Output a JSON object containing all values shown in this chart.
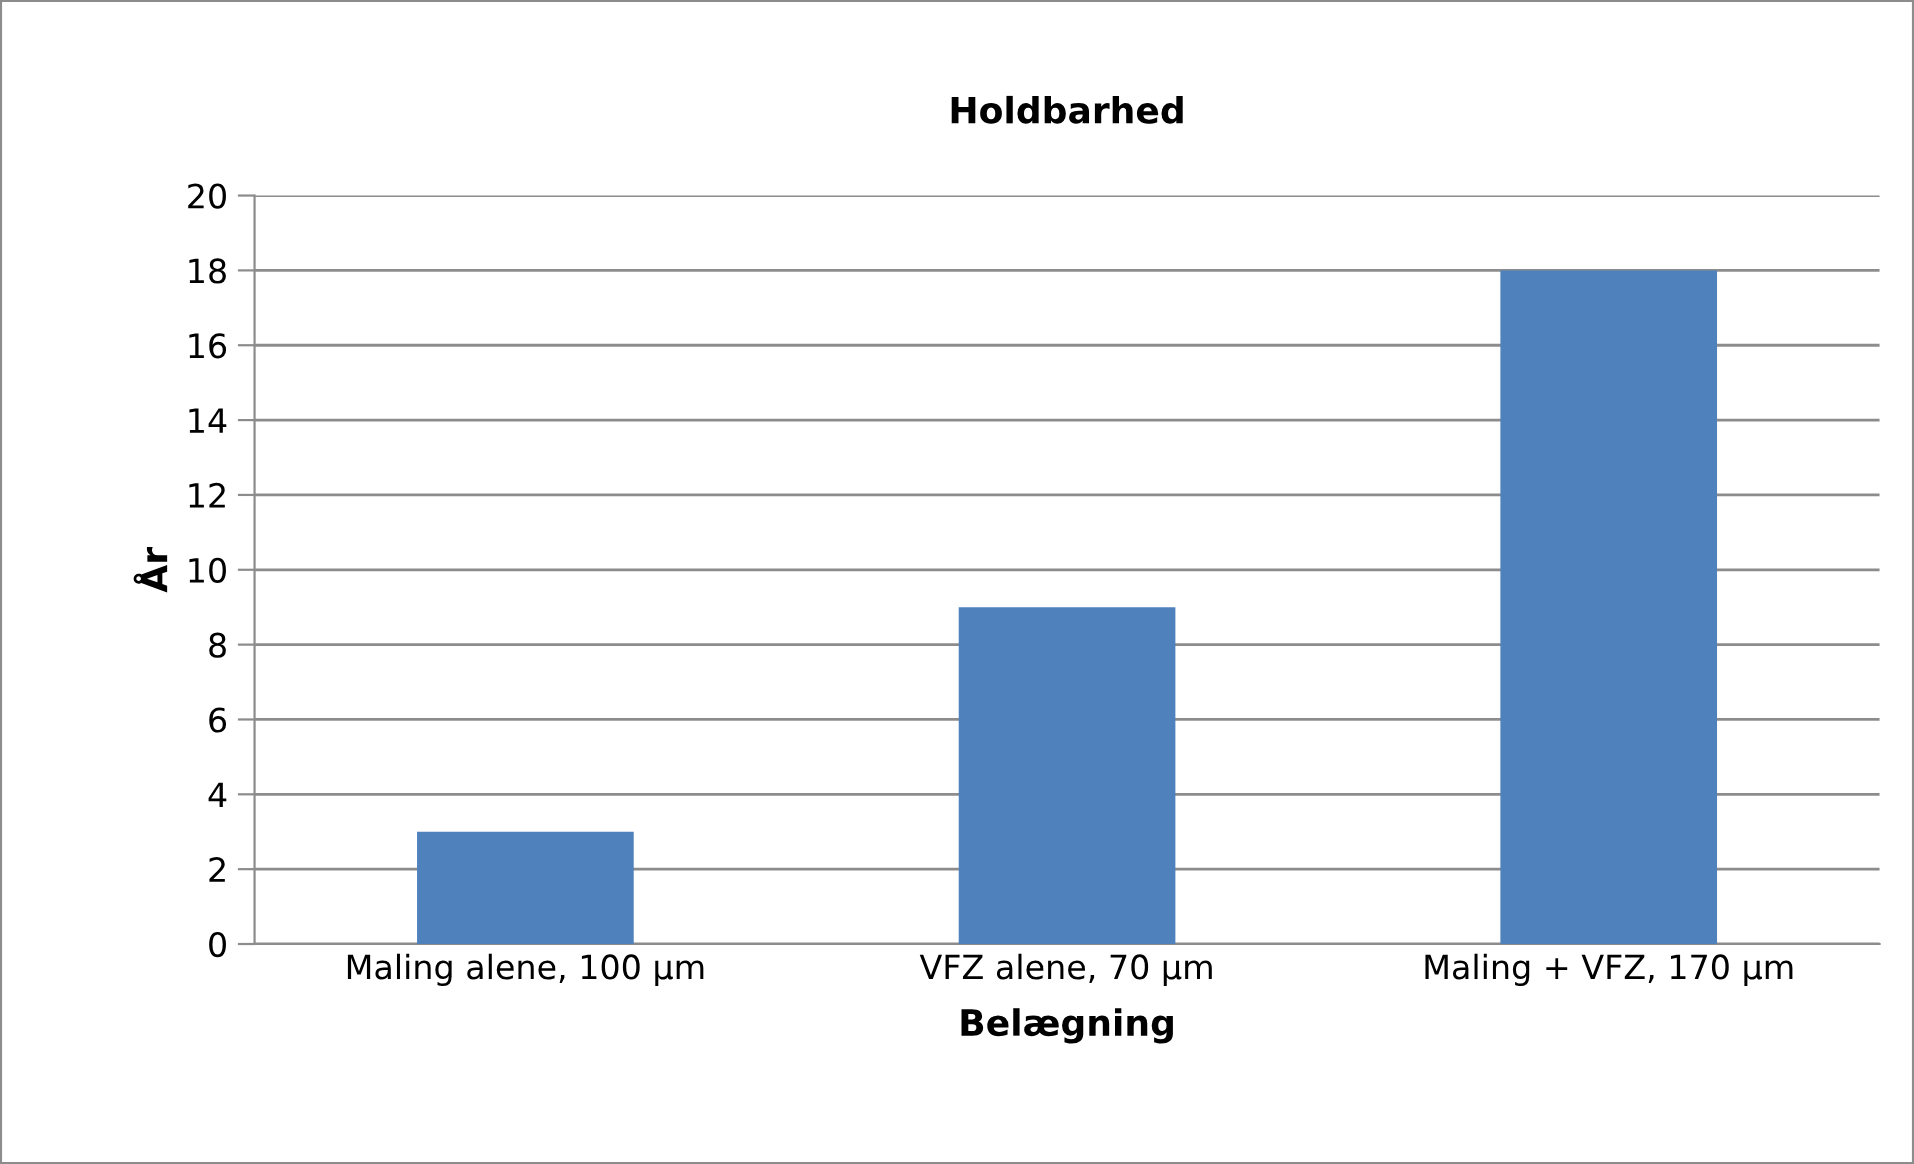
{
  "chart_data": {
    "type": "bar",
    "title": "Holdbarhed",
    "xlabel": "Belægning",
    "ylabel": "År",
    "categories": [
      "Maling alene, 100 µm",
      "VFZ alene, 70 µm",
      "Maling + VFZ, 170 µm"
    ],
    "values": [
      3,
      9,
      18
    ],
    "color": "#4f81bd",
    "ylim": [
      0,
      20
    ],
    "yticks": [
      0,
      2,
      4,
      6,
      8,
      10,
      12,
      14,
      16,
      18,
      20
    ],
    "grid": "y",
    "legend": false
  }
}
